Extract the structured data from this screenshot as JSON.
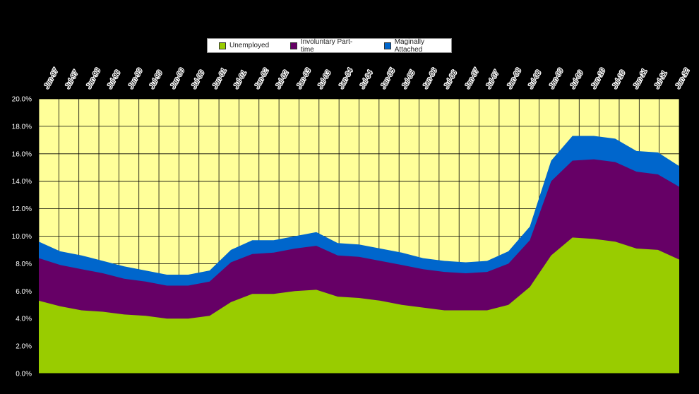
{
  "chart_data": {
    "type": "area",
    "stacked": true,
    "legend": "top-center",
    "grid": true,
    "ylim": [
      0,
      20
    ],
    "y_ticks": [
      "0.0%",
      "2.0%",
      "4.0%",
      "6.0%",
      "8.0%",
      "10.0%",
      "12.0%",
      "14.0%",
      "16.0%",
      "18.0%",
      "20.0%"
    ],
    "x_tick_labels": [
      "Jan-97",
      "Jul-97",
      "Jan-98",
      "Jul-98",
      "Jan-99",
      "Jul-99",
      "Jan-00",
      "Jul-00",
      "Jan-01",
      "Jul-01",
      "Jan-02",
      "Jul-02",
      "Jan-03",
      "Jul-03",
      "Jan-04",
      "Jul-04",
      "Jan-05",
      "Jul-05",
      "Jan-06",
      "Jul-06",
      "Jan-07",
      "Jul-07",
      "Jan-08",
      "Jul-08",
      "Jan-09",
      "Jul-09",
      "Jan-10",
      "Jul-10",
      "Jan-11",
      "Jul-11",
      "Jan-12"
    ],
    "background_color": "#ffff99",
    "x": [
      "Jan-97",
      "Jul-97",
      "Jan-98",
      "Jul-98",
      "Jan-99",
      "Jul-99",
      "Jan-00",
      "Jul-00",
      "Jan-01",
      "Jul-01",
      "Jan-02",
      "Jul-02",
      "Jan-03",
      "Jul-03",
      "Jan-04",
      "Jul-04",
      "Jan-05",
      "Jul-05",
      "Jan-06",
      "Jul-06",
      "Jan-07",
      "Jul-07",
      "Jan-08",
      "Jul-08",
      "Jan-09",
      "Jul-09",
      "Jan-10",
      "Jul-10",
      "Jan-11",
      "Jul-11",
      "Jan-12"
    ],
    "series": [
      {
        "name": "Unemployed",
        "color": "#99cc00",
        "values": [
          5.3,
          4.9,
          4.6,
          4.5,
          4.3,
          4.2,
          4.0,
          4.0,
          4.2,
          5.2,
          5.8,
          5.8,
          6.0,
          6.1,
          5.6,
          5.5,
          5.3,
          5.0,
          4.8,
          4.6,
          4.6,
          4.6,
          5.0,
          6.3,
          8.6,
          9.9,
          9.8,
          9.6,
          9.1,
          9.0,
          8.3
        ]
      },
      {
        "name": "Involuntary Part-time",
        "color": "#660066",
        "values": [
          3.1,
          3.0,
          3.0,
          2.8,
          2.6,
          2.5,
          2.4,
          2.4,
          2.5,
          2.9,
          2.9,
          3.0,
          3.1,
          3.2,
          3.0,
          3.0,
          2.9,
          2.9,
          2.8,
          2.8,
          2.7,
          2.8,
          3.0,
          3.4,
          5.4,
          5.6,
          5.8,
          5.8,
          5.6,
          5.5,
          5.3
        ]
      },
      {
        "name": "Maginally Attached",
        "color": "#0066cc",
        "values": [
          1.2,
          1.0,
          1.0,
          0.9,
          0.9,
          0.8,
          0.8,
          0.8,
          0.8,
          0.9,
          1.0,
          0.9,
          0.9,
          1.0,
          0.9,
          0.9,
          0.9,
          0.9,
          0.8,
          0.8,
          0.8,
          0.8,
          0.9,
          1.0,
          1.5,
          1.8,
          1.7,
          1.7,
          1.5,
          1.6,
          1.5
        ]
      }
    ]
  }
}
